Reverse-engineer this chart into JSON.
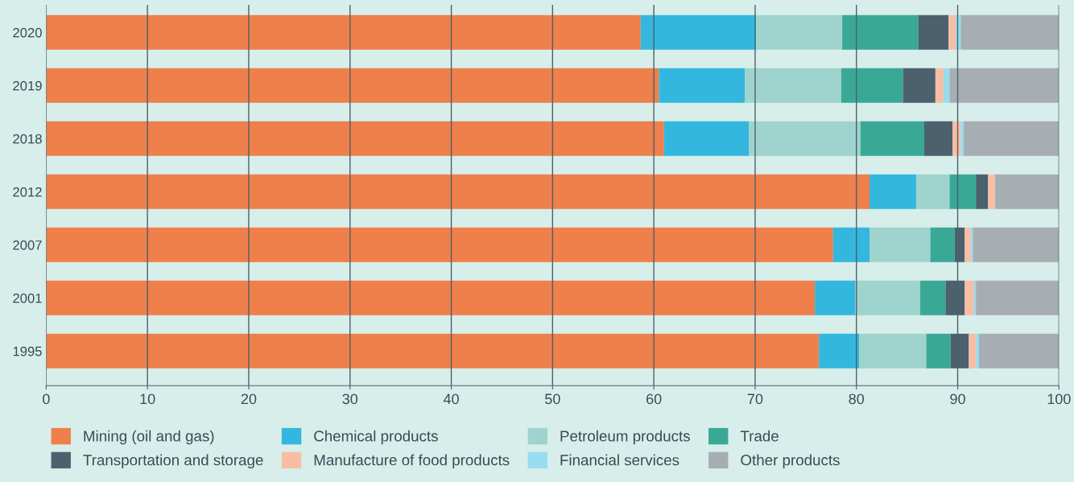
{
  "chart_data": {
    "type": "bar",
    "orientation": "horizontal",
    "stacked": true,
    "categories": [
      "2020",
      "2019",
      "2018",
      "2012",
      "2007",
      "2001",
      "1995"
    ],
    "series": [
      {
        "name": "Mining (oil and gas)",
        "color": "#ef7f4b",
        "values": [
          58.7,
          60.5,
          61.0,
          81.3,
          77.7,
          75.9,
          76.3
        ]
      },
      {
        "name": "Chemical products",
        "color": "#33b7de",
        "values": [
          11.4,
          8.5,
          8.4,
          4.6,
          3.6,
          4.0,
          4.0
        ]
      },
      {
        "name": "Petroleum products",
        "color": "#9ed4cd",
        "values": [
          8.5,
          9.5,
          11.0,
          3.3,
          6.0,
          6.4,
          6.6
        ]
      },
      {
        "name": "Trade",
        "color": "#3aa897",
        "values": [
          7.5,
          6.1,
          6.3,
          2.6,
          2.4,
          2.5,
          2.4
        ]
      },
      {
        "name": "Transportation and storage",
        "color": "#4b616d",
        "values": [
          3.0,
          3.2,
          2.8,
          1.2,
          1.0,
          1.9,
          1.8
        ]
      },
      {
        "name": "Manufacture of food products",
        "color": "#f8bea3",
        "values": [
          0.7,
          0.8,
          0.8,
          0.7,
          0.6,
          0.9,
          0.7
        ]
      },
      {
        "name": "Financial services",
        "color": "#98dcf0",
        "values": [
          0.5,
          0.6,
          0.3,
          0,
          0.2,
          0.2,
          0.3
        ]
      },
      {
        "name": "Other products",
        "color": "#a6aeb3",
        "values": [
          9.7,
          10.8,
          9.4,
          6.3,
          8.5,
          8.2,
          7.9
        ]
      }
    ],
    "xlim": [
      0,
      100
    ],
    "xticks": [
      0,
      10,
      20,
      30,
      40,
      50,
      60,
      70,
      80,
      90,
      100
    ],
    "grid": "x",
    "legend": "bottom"
  }
}
